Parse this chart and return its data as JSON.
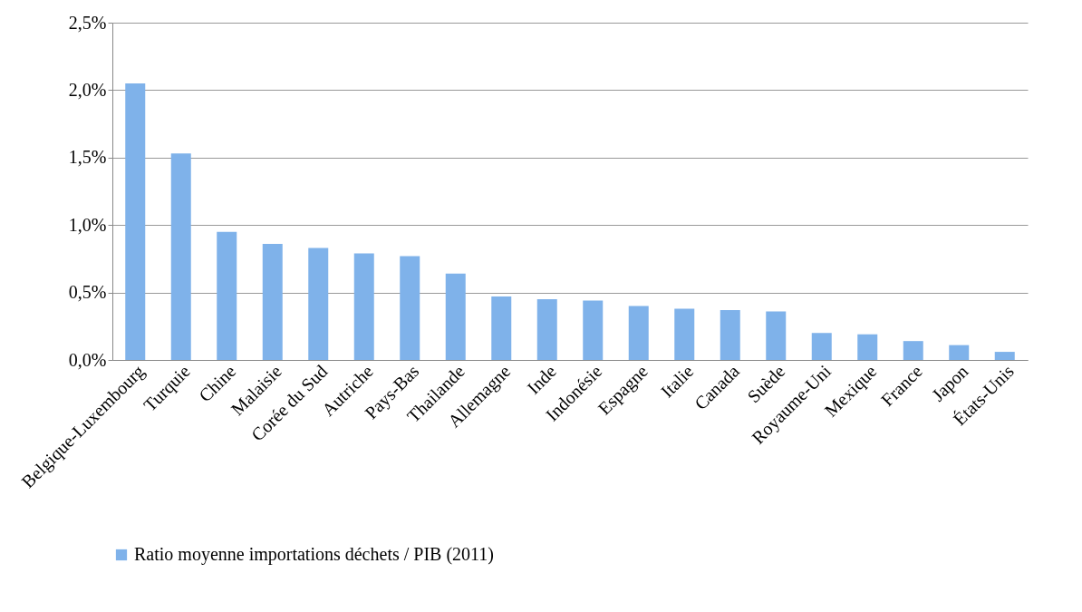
{
  "chart_data": {
    "type": "bar",
    "categories": [
      "Belgique-Luxembourg",
      "Turquie",
      "Chine",
      "Malaisie",
      "Corée du Sud",
      "Autriche",
      "Pays-Bas",
      "Thailande",
      "Allemagne",
      "Inde",
      "Indonésie",
      "Espagne",
      "Italie",
      "Canada",
      "Suède",
      "Royaume-Uni",
      "Mexique",
      "France",
      "Japon",
      "États-Unis"
    ],
    "series": [
      {
        "name": "Ratio moyenne importations déchets / PIB (2011)",
        "color": "#7fb2ea",
        "values": [
          2.05,
          1.53,
          0.95,
          0.86,
          0.83,
          0.79,
          0.77,
          0.64,
          0.47,
          0.45,
          0.44,
          0.4,
          0.38,
          0.37,
          0.36,
          0.2,
          0.19,
          0.14,
          0.11,
          0.06
        ]
      }
    ],
    "ylim": [
      0,
      2.5
    ],
    "yticks": [
      {
        "value": 0,
        "label": "0,0%"
      },
      {
        "value": 0.5,
        "label": "0,5%"
      },
      {
        "value": 1,
        "label": "1,0%"
      },
      {
        "value": 1.5,
        "label": "1,5%"
      },
      {
        "value": 2,
        "label": "2,0%"
      },
      {
        "value": 2.5,
        "label": "2,5%"
      }
    ],
    "grid": "y",
    "legend": "bottom"
  }
}
